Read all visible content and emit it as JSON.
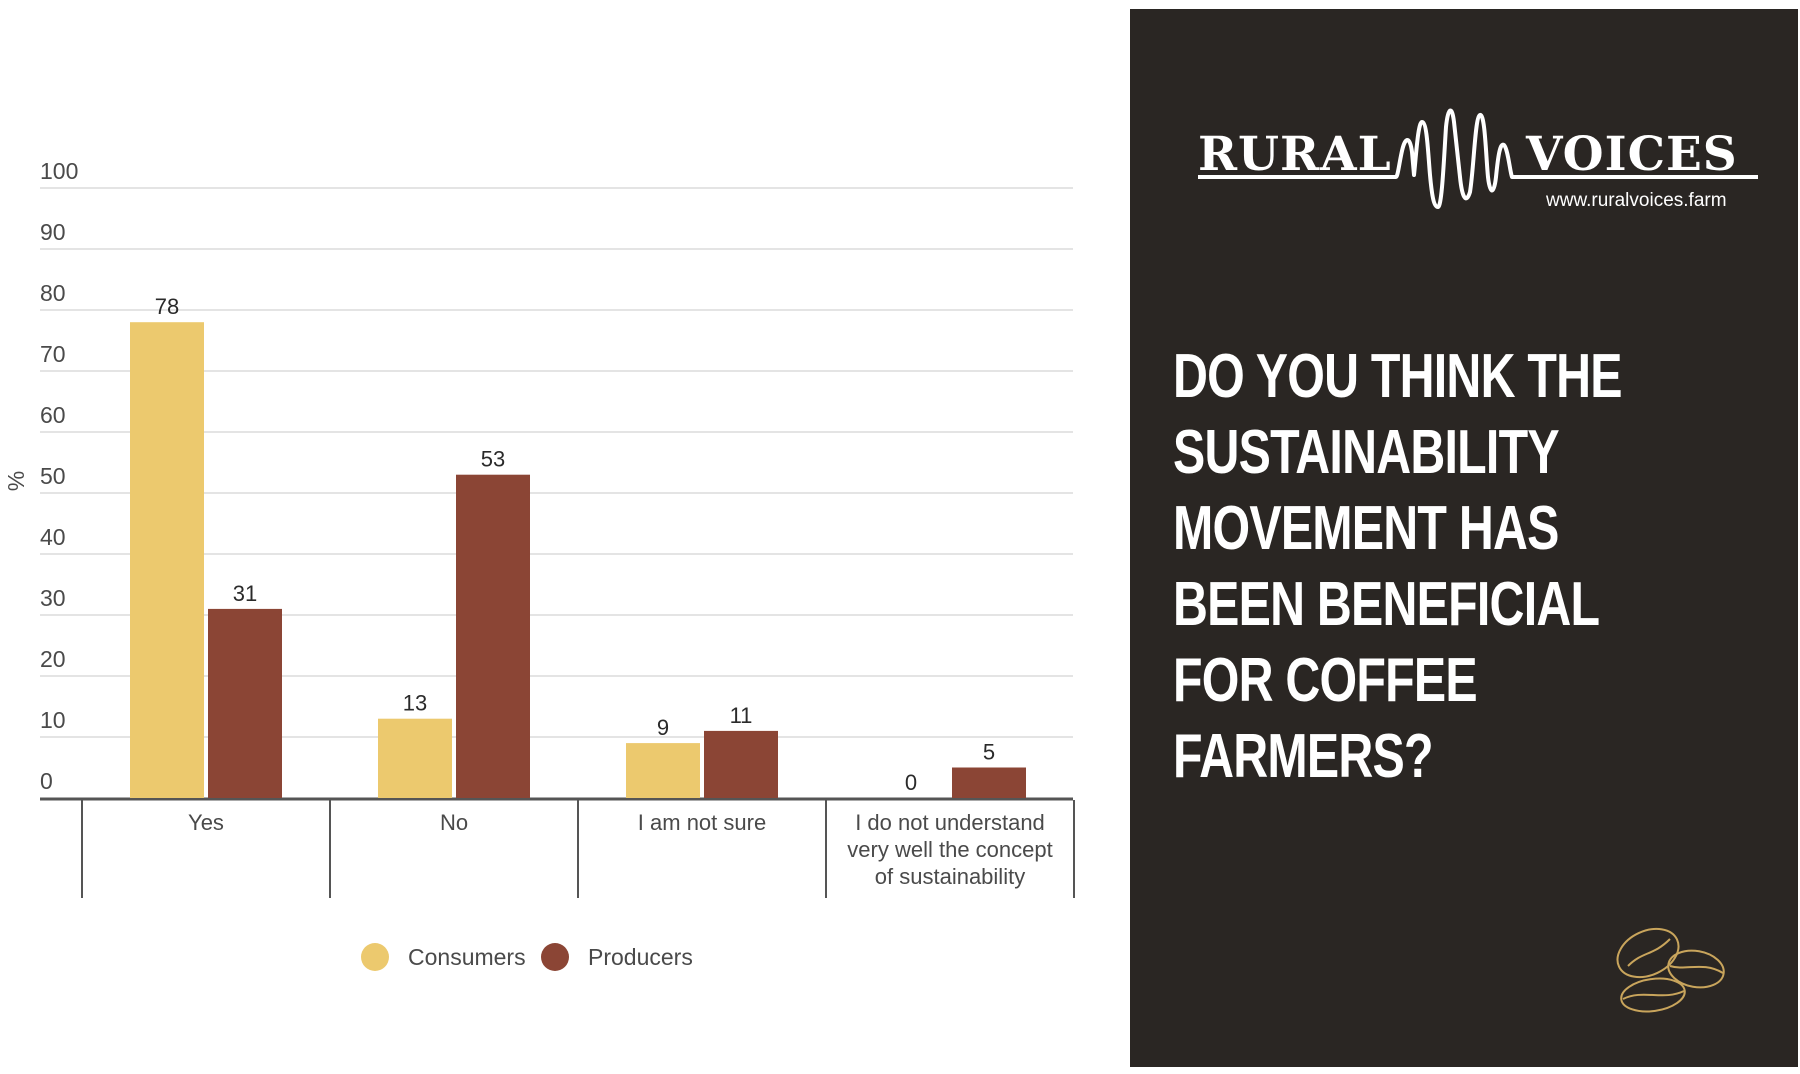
{
  "chart_data": {
    "type": "bar",
    "categories": [
      "Yes",
      "No",
      "I am not sure",
      "I do not understand very well the concept of sustainability"
    ],
    "category_lines": [
      [
        "Yes"
      ],
      [
        "No"
      ],
      [
        "I am not sure"
      ],
      [
        "I do not understand",
        "very well the concept",
        "of sustainability"
      ]
    ],
    "series": [
      {
        "name": "Consumers",
        "values": [
          78,
          13,
          9,
          0
        ],
        "color": "#ecc96e"
      },
      {
        "name": "Producers",
        "values": [
          31,
          53,
          11,
          5
        ],
        "color": "#8b4535"
      }
    ],
    "ylabel": "%",
    "ylim": [
      0,
      100
    ],
    "yticks": [
      0,
      10,
      20,
      30,
      40,
      50,
      60,
      70,
      80,
      90,
      100
    ],
    "grid": true,
    "legend_position": "bottom-center"
  },
  "panel": {
    "brand_left": "RURAL",
    "brand_right": "VOICES",
    "brand_url": "www.ruralvoices.farm",
    "question": "DO YOU THINK THE SUSTAINABILITY MOVEMENT HAS BEEN BENEFICIAL FOR COFFEE FARMERS?",
    "background_color": "#2a2623",
    "icon": "coffee-beans-icon"
  }
}
